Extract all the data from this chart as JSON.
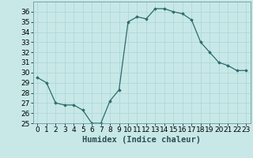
{
  "x": [
    0,
    1,
    2,
    3,
    4,
    5,
    6,
    7,
    8,
    9,
    10,
    11,
    12,
    13,
    14,
    15,
    16,
    17,
    18,
    19,
    20,
    21,
    22,
    23
  ],
  "y": [
    29.5,
    29,
    27,
    26.8,
    26.8,
    26.3,
    25,
    25,
    27.2,
    28.3,
    35,
    35.5,
    35.3,
    36.3,
    36.3,
    36,
    35.8,
    35.2,
    33,
    32,
    31,
    30.7,
    30.2,
    30.2
  ],
  "line_color": "#2d6b6b",
  "marker": "D",
  "marker_size": 1.8,
  "bg_color": "#c8e8e8",
  "grid_color": "#b0d8d8",
  "xlabel": "Humidex (Indice chaleur)",
  "ylim": [
    25,
    37
  ],
  "yticks": [
    25,
    26,
    27,
    28,
    29,
    30,
    31,
    32,
    33,
    34,
    35,
    36
  ],
  "xticks": [
    0,
    1,
    2,
    3,
    4,
    5,
    6,
    7,
    8,
    9,
    10,
    11,
    12,
    13,
    14,
    15,
    16,
    17,
    18,
    19,
    20,
    21,
    22,
    23
  ],
  "xlabel_fontsize": 7.5,
  "tick_fontsize": 6.5,
  "line_width": 0.9
}
